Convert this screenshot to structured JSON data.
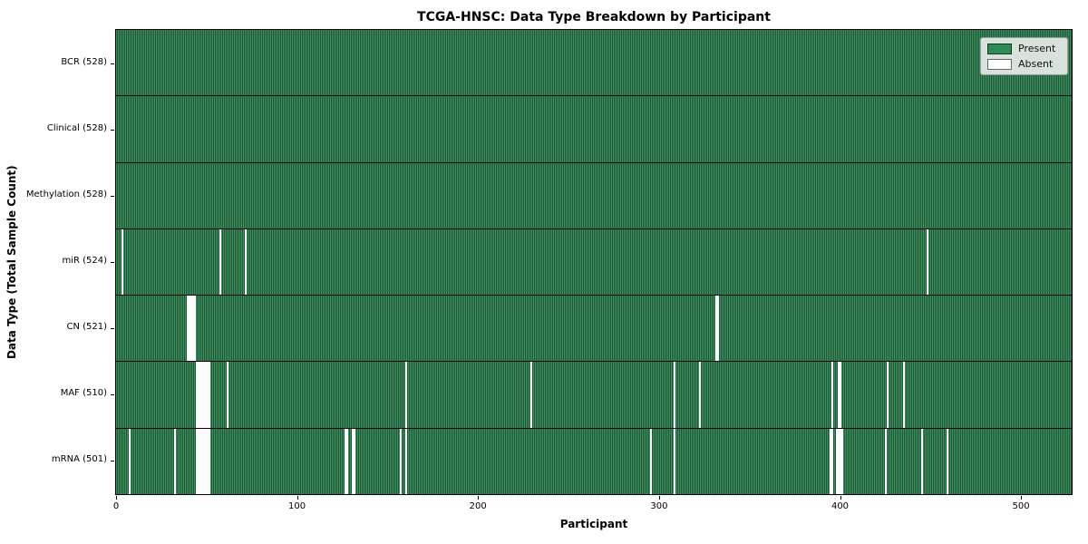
{
  "chart_data": {
    "type": "heatmap",
    "title": "TCGA-HNSC: Data Type Breakdown by Participant",
    "xlabel": "Participant",
    "ylabel": "Data Type (Total Sample Count)",
    "x_ticks": [
      0,
      100,
      200,
      300,
      400,
      500
    ],
    "x_range": [
      0,
      528
    ],
    "n_participants": 528,
    "grid": false,
    "legend_position": "upper-right",
    "legend": [
      {
        "label": "Present",
        "color": "#2e8b57"
      },
      {
        "label": "Absent",
        "color": "#ffffff"
      }
    ],
    "colors": {
      "present_fill": "#2e8b57",
      "bar_edge": "#1e5636",
      "absent": "#ffffff",
      "row_divider": "#000000"
    },
    "rows": [
      {
        "name": "BCR",
        "label": "BCR (528)",
        "present_count": 528,
        "absent_participants": []
      },
      {
        "name": "Clinical",
        "label": "Clinical (528)",
        "present_count": 528,
        "absent_participants": []
      },
      {
        "name": "Methylation",
        "label": "Methylation (528)",
        "present_count": 528,
        "absent_participants": []
      },
      {
        "name": "miR",
        "label": "miR (524)",
        "present_count": 524,
        "absent_participants": [
          3,
          57,
          71,
          448
        ]
      },
      {
        "name": "CN",
        "label": "CN (521)",
        "present_count": 521,
        "absent_participants": [
          39,
          40,
          41,
          42,
          43,
          331,
          332
        ]
      },
      {
        "name": "MAF",
        "label": "MAF (510)",
        "present_count": 510,
        "absent_participants": [
          44,
          45,
          46,
          47,
          48,
          49,
          50,
          51,
          61,
          160,
          229,
          308,
          322,
          395,
          399,
          400,
          426,
          435
        ]
      },
      {
        "name": "mRNA",
        "label": "mRNA (501)",
        "present_count": 501,
        "absent_participants": [
          7,
          32,
          44,
          45,
          46,
          47,
          48,
          49,
          50,
          51,
          126,
          127,
          130,
          131,
          157,
          160,
          295,
          308,
          394,
          395,
          398,
          399,
          400,
          401,
          425,
          445,
          459
        ]
      }
    ]
  }
}
